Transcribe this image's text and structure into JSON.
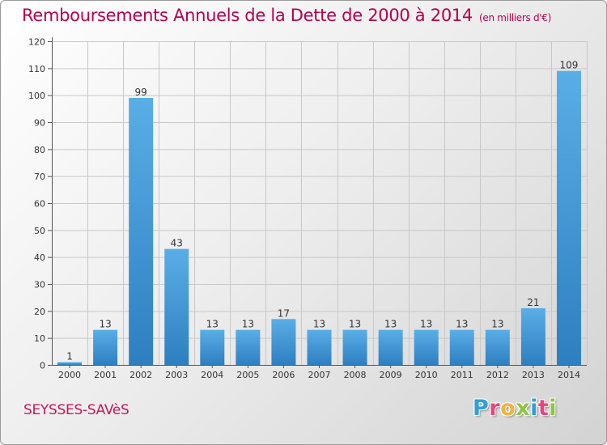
{
  "title": "Remboursements Annuels de la Dette de 2000 à 2014",
  "unit": "(en milliers d'€)",
  "commune": "SEYSSES-SAVèS",
  "logo": {
    "letters": [
      "P",
      "r",
      "o",
      "x",
      "i",
      "t",
      "i"
    ],
    "colors": [
      "#2f9fd6",
      "#e8467a",
      "#f2b33d",
      "#8cc63f",
      "#2f9fd6",
      "#e8467a",
      "#8cc63f"
    ]
  },
  "colors": {
    "title": "#b4004e",
    "bar_light": "#5aaee6",
    "bar_dark": "#2d7fc0",
    "grid": "#c8c8c8"
  },
  "chart_data": {
    "type": "bar",
    "categories": [
      "2000",
      "2001",
      "2002",
      "2003",
      "2004",
      "2005",
      "2006",
      "2007",
      "2008",
      "2009",
      "2010",
      "2011",
      "2012",
      "2013",
      "2014"
    ],
    "values": [
      1,
      13,
      99,
      43,
      13,
      13,
      17,
      13,
      13,
      13,
      13,
      13,
      13,
      21,
      109
    ],
    "data_labels": [
      "1",
      "13",
      "99",
      "43",
      "13",
      "13",
      "17",
      "13",
      "13",
      "13",
      "13",
      "13",
      "13",
      "21",
      "109"
    ],
    "ylim": [
      0,
      120
    ],
    "yticks": [
      0,
      10,
      20,
      30,
      40,
      50,
      60,
      70,
      80,
      90,
      100,
      110,
      120
    ],
    "grid": true,
    "legend": "none"
  }
}
